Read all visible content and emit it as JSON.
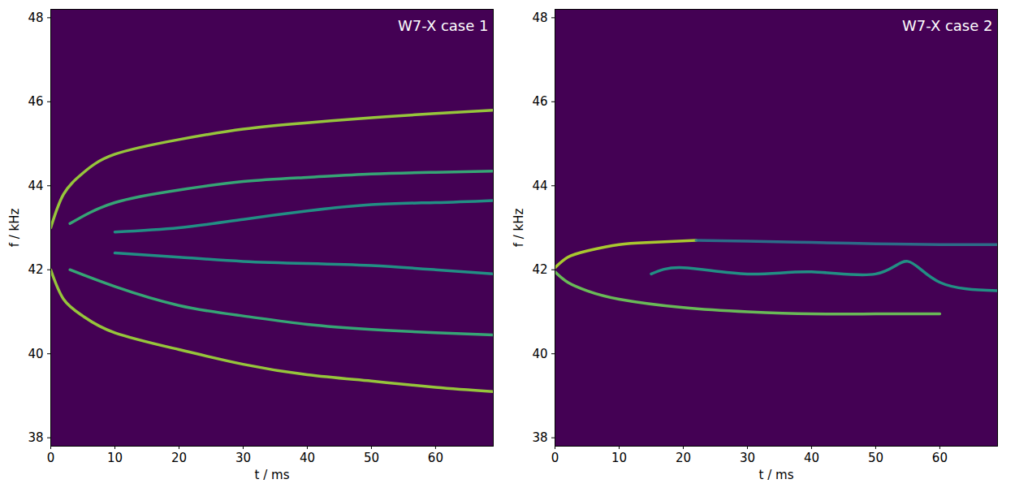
{
  "chart_data": [
    {
      "type": "line",
      "title": "W7-X case 1",
      "x_label": "t / ms",
      "y_label": "f / kHz",
      "xlim": [
        0,
        69
      ],
      "ylim": [
        37.8,
        48.2
      ],
      "xticks": [
        0,
        10,
        20,
        30,
        40,
        50,
        60
      ],
      "yticks": [
        38,
        40,
        42,
        44,
        46,
        48
      ],
      "grid": false,
      "series": [
        {
          "color": "#a0da39",
          "x": [
            0,
            2,
            5,
            10,
            20,
            30,
            40,
            50,
            60,
            69
          ],
          "values": [
            43.0,
            43.8,
            44.3,
            44.75,
            45.1,
            45.35,
            45.5,
            45.62,
            45.72,
            45.8
          ]
        },
        {
          "color": "#a0da39",
          "x": [
            0,
            2,
            5,
            10,
            20,
            30,
            40,
            50,
            60,
            69
          ],
          "values": [
            42.0,
            41.3,
            40.9,
            40.5,
            40.1,
            39.75,
            39.5,
            39.35,
            39.2,
            39.1
          ]
        },
        {
          "color": "#35b779",
          "x": [
            3,
            10,
            20,
            30,
            40,
            50,
            60,
            69
          ],
          "values": [
            43.1,
            43.6,
            43.9,
            44.1,
            44.2,
            44.28,
            44.32,
            44.35
          ]
        },
        {
          "color": "#35b779",
          "x": [
            3,
            10,
            20,
            30,
            40,
            50,
            60,
            69
          ],
          "values": [
            42.0,
            41.6,
            41.15,
            40.9,
            40.7,
            40.58,
            40.5,
            40.45
          ]
        },
        {
          "color": "#1f9e89",
          "x": [
            10,
            20,
            30,
            40,
            50,
            60,
            69
          ],
          "values": [
            42.9,
            43.0,
            43.2,
            43.4,
            43.55,
            43.6,
            43.65
          ]
        },
        {
          "color": "#1f9e89",
          "x": [
            10,
            20,
            30,
            40,
            50,
            60,
            69
          ],
          "values": [
            42.4,
            42.3,
            42.2,
            42.15,
            42.1,
            42.0,
            41.9
          ]
        }
      ]
    },
    {
      "type": "line",
      "title": "W7-X case 2",
      "x_label": "t / ms",
      "y_label": "f / kHz",
      "xlim": [
        0,
        69
      ],
      "ylim": [
        37.8,
        48.2
      ],
      "xticks": [
        0,
        10,
        20,
        30,
        40,
        50,
        60
      ],
      "yticks": [
        38,
        40,
        42,
        44,
        46,
        48
      ],
      "grid": false,
      "series": [
        {
          "color": "#b5de2b",
          "x": [
            0,
            2,
            5,
            10,
            15,
            22
          ],
          "values": [
            42.05,
            42.3,
            42.45,
            42.6,
            42.65,
            42.7
          ]
        },
        {
          "color": "#2a788e",
          "x": [
            22,
            30,
            40,
            50,
            60,
            69
          ],
          "values": [
            42.7,
            42.68,
            42.65,
            42.62,
            42.6,
            42.6
          ]
        },
        {
          "color": "#6ece58",
          "x": [
            0,
            2,
            5,
            10,
            20,
            30,
            40,
            50,
            60
          ],
          "values": [
            41.95,
            41.7,
            41.5,
            41.3,
            41.1,
            41.0,
            40.95,
            40.95,
            40.95
          ]
        },
        {
          "color": "#1f9e89",
          "x": [
            15,
            20,
            30,
            40,
            50,
            55,
            60,
            69
          ],
          "values": [
            41.9,
            42.05,
            41.9,
            41.95,
            41.9,
            42.2,
            41.7,
            41.5
          ]
        }
      ]
    }
  ]
}
